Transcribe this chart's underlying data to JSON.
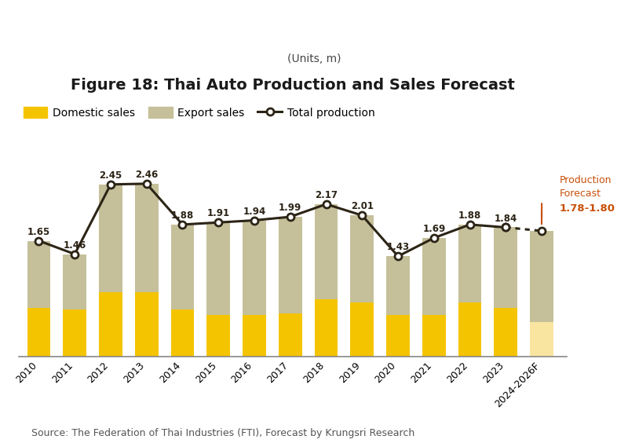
{
  "title_line1": "Figure 18: Thai Auto Production and Sales Forecast",
  "title_line2": "(Units, m)",
  "years": [
    "2010",
    "2011",
    "2012",
    "2013",
    "2014",
    "2015",
    "2016",
    "2017",
    "2018",
    "2019",
    "2020",
    "2021",
    "2022",
    "2023",
    "2024-2026F"
  ],
  "domestic_sales": [
    0.7,
    0.68,
    0.92,
    0.92,
    0.68,
    0.6,
    0.6,
    0.62,
    0.82,
    0.78,
    0.6,
    0.6,
    0.78,
    0.7,
    0.5
  ],
  "export_sales": [
    0.95,
    0.78,
    1.53,
    1.54,
    1.2,
    1.31,
    1.34,
    1.37,
    1.35,
    1.23,
    0.83,
    1.09,
    1.1,
    1.14,
    1.29
  ],
  "total_production": [
    1.65,
    1.46,
    2.45,
    2.46,
    1.88,
    1.91,
    1.94,
    1.99,
    2.17,
    2.01,
    1.43,
    1.69,
    1.88,
    1.84,
    1.79
  ],
  "total_labels": [
    "1.65",
    "1.46",
    "2.45",
    "2.46",
    "1.88",
    "1.91",
    "1.94",
    "1.99",
    "2.17",
    "2.01",
    "1.43",
    "1.69",
    "1.88",
    "1.84",
    ""
  ],
  "forecast_label": "1.78-1.80",
  "domestic_color": "#F5C400",
  "domestic_color_forecast": "#FAE5A0",
  "export_color": "#C5C09A",
  "export_color_forecast": "#C5C09A",
  "line_color": "#2C2416",
  "forecast_text_color": "#C8500A",
  "source_text": "Source: The Federation of Thai Industries (FTI), Forecast by Krungsri Research",
  "legend_domestic": "Domestic sales",
  "legend_export": "Export sales",
  "legend_total": "Total production",
  "title_fontsize": 14,
  "subtitle_fontsize": 10,
  "label_fontsize": 8.5,
  "source_fontsize": 9,
  "ylim_max": 2.95
}
